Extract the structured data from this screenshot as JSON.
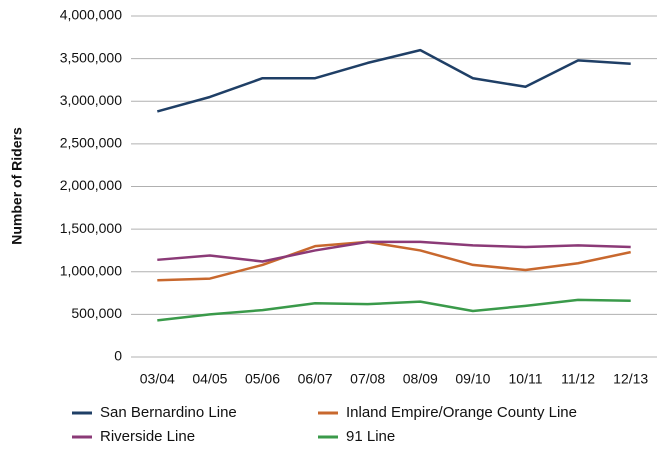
{
  "chart_data": {
    "type": "line",
    "y_label": "Number of Riders",
    "categories": [
      "03/04",
      "04/05",
      "05/06",
      "06/07",
      "07/08",
      "08/09",
      "09/10",
      "10/11",
      "11/12",
      "12/13"
    ],
    "series": [
      {
        "name": "San Bernardino Line",
        "color": "#1f3f66",
        "values": [
          2880000,
          3050000,
          3270000,
          3270000,
          3450000,
          3600000,
          3270000,
          3170000,
          3480000,
          3440000
        ]
      },
      {
        "name": "Inland Empire/Orange County Line",
        "color": "#c8682e",
        "values": [
          900000,
          920000,
          1080000,
          1300000,
          1350000,
          1250000,
          1080000,
          1020000,
          1100000,
          1230000
        ]
      },
      {
        "name": "Riverside Line",
        "color": "#8b3a77",
        "values": [
          1140000,
          1190000,
          1120000,
          1250000,
          1350000,
          1350000,
          1310000,
          1290000,
          1310000,
          1290000
        ]
      },
      {
        "name": "91 Line",
        "color": "#3a9a4a",
        "values": [
          430000,
          500000,
          550000,
          630000,
          620000,
          650000,
          540000,
          600000,
          670000,
          660000
        ]
      }
    ],
    "ylim": [
      0,
      4000000
    ],
    "yticks": [
      0,
      {
        "value": 500000,
        "label": "500,000"
      },
      {
        "value": 1000000,
        "label": "1,000,000"
      },
      {
        "value": 1500000,
        "label": "1,500,000"
      },
      {
        "value": 2000000,
        "label": "2,000,000"
      },
      {
        "value": 2500000,
        "label": "2,500,000"
      },
      {
        "value": 3000000,
        "label": "3,000,000"
      },
      {
        "value": 3500000,
        "label": "3,500,000"
      },
      {
        "value": 4000000,
        "label": "4,000,000"
      }
    ],
    "grid": true
  }
}
